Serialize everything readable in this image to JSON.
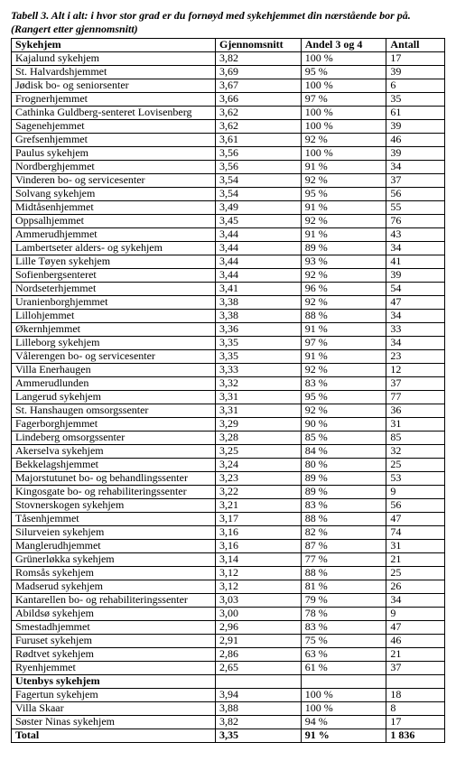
{
  "title_line1": "Tabell 3. Alt i alt: i hvor stor grad er du fornøyd med sykehjemmet din nærstående bor på.",
  "title_line2": "(Rangert etter gjennomsnitt)",
  "headers": {
    "name": "Sykehjem",
    "avg": "Gjennomsnitt",
    "share": "Andel 3 og 4",
    "count": "Antall"
  },
  "section_label": "Utenbys sykehjem",
  "total_label": "Total",
  "total": {
    "avg": "3,35",
    "share": "91 %",
    "count": "1 836"
  },
  "rows": [
    {
      "name": "Kajalund sykehjem",
      "avg": "3,82",
      "share": "100 %",
      "count": "17"
    },
    {
      "name": "St. Halvardshjemmet",
      "avg": "3,69",
      "share": "95 %",
      "count": "39"
    },
    {
      "name": "Jødisk bo- og seniorsenter",
      "avg": "3,67",
      "share": "100 %",
      "count": "6"
    },
    {
      "name": "Frognerhjemmet",
      "avg": "3,66",
      "share": "97 %",
      "count": "35"
    },
    {
      "name": "Cathinka Guldberg-senteret Lovisenberg",
      "avg": "3,62",
      "share": "100 %",
      "count": "61"
    },
    {
      "name": "Sagenehjemmet",
      "avg": "3,62",
      "share": "100 %",
      "count": "39"
    },
    {
      "name": "Grefsenhjemmet",
      "avg": "3,61",
      "share": "92 %",
      "count": "46"
    },
    {
      "name": "Paulus sykehjem",
      "avg": "3,56",
      "share": "100 %",
      "count": "39"
    },
    {
      "name": "Nordberghjemmet",
      "avg": "3,56",
      "share": "91 %",
      "count": "34"
    },
    {
      "name": "Vinderen bo- og servicesenter",
      "avg": "3,54",
      "share": "92 %",
      "count": "37"
    },
    {
      "name": "Solvang sykehjem",
      "avg": "3,54",
      "share": "95 %",
      "count": "56"
    },
    {
      "name": "Midtåsenhjemmet",
      "avg": "3,49",
      "share": "91 %",
      "count": "55"
    },
    {
      "name": "Oppsalhjemmet",
      "avg": "3,45",
      "share": "92 %",
      "count": "76"
    },
    {
      "name": "Ammerudhjemmet",
      "avg": "3,44",
      "share": "91 %",
      "count": "43"
    },
    {
      "name": "Lambertseter alders- og sykehjem",
      "avg": "3,44",
      "share": "89 %",
      "count": "34"
    },
    {
      "name": "Lille Tøyen sykehjem",
      "avg": "3,44",
      "share": "93 %",
      "count": "41"
    },
    {
      "name": "Sofienbergsenteret",
      "avg": "3,44",
      "share": "92 %",
      "count": "39"
    },
    {
      "name": "Nordseterhjemmet",
      "avg": "3,41",
      "share": "96 %",
      "count": "54"
    },
    {
      "name": "Uranienborghjemmet",
      "avg": "3,38",
      "share": "92 %",
      "count": "47"
    },
    {
      "name": "Lillohjemmet",
      "avg": "3,38",
      "share": "88 %",
      "count": "34"
    },
    {
      "name": "Økernhjemmet",
      "avg": "3,36",
      "share": "91 %",
      "count": "33"
    },
    {
      "name": "Lilleborg sykehjem",
      "avg": "3,35",
      "share": "97 %",
      "count": "34"
    },
    {
      "name": "Vålerengen bo- og servicesenter",
      "avg": "3,35",
      "share": "91 %",
      "count": "23"
    },
    {
      "name": "Villa Enerhaugen",
      "avg": "3,33",
      "share": "92 %",
      "count": "12"
    },
    {
      "name": "Ammerudlunden",
      "avg": "3,32",
      "share": "83 %",
      "count": "37"
    },
    {
      "name": "Langerud sykehjem",
      "avg": "3,31",
      "share": "95 %",
      "count": "77"
    },
    {
      "name": "St. Hanshaugen omsorgssenter",
      "avg": "3,31",
      "share": "92 %",
      "count": "36"
    },
    {
      "name": "Fagerborghjemmet",
      "avg": "3,29",
      "share": "90 %",
      "count": "31"
    },
    {
      "name": "Lindeberg omsorgssenter",
      "avg": "3,28",
      "share": "85 %",
      "count": "85"
    },
    {
      "name": "Akerselva sykehjem",
      "avg": "3,25",
      "share": "84 %",
      "count": "32"
    },
    {
      "name": "Bekkelagshjemmet",
      "avg": "3,24",
      "share": "80 %",
      "count": "25"
    },
    {
      "name": "Majorstutunet bo- og behandlingssenter",
      "avg": "3,23",
      "share": "89 %",
      "count": "53"
    },
    {
      "name": "Kingosgate bo- og rehabiliteringssenter",
      "avg": "3,22",
      "share": "89 %",
      "count": "9"
    },
    {
      "name": "Stovnerskogen sykehjem",
      "avg": "3,21",
      "share": "83 %",
      "count": "56"
    },
    {
      "name": "Tåsenhjemmet",
      "avg": "3,17",
      "share": "88 %",
      "count": "47"
    },
    {
      "name": "Silurveien sykehjem",
      "avg": "3,16",
      "share": "82 %",
      "count": "74"
    },
    {
      "name": "Manglerudhjemmet",
      "avg": "3,16",
      "share": "87 %",
      "count": "31"
    },
    {
      "name": "Grünerløkka sykehjem",
      "avg": "3,14",
      "share": "77 %",
      "count": "21"
    },
    {
      "name": "Romsås sykehjem",
      "avg": "3,12",
      "share": "88 %",
      "count": "25"
    },
    {
      "name": "Madserud sykehjem",
      "avg": "3,12",
      "share": "81 %",
      "count": "26"
    },
    {
      "name": "Kantarellen bo- og rehabiliteringssenter",
      "avg": "3,03",
      "share": "79 %",
      "count": "34"
    },
    {
      "name": "Abildsø sykehjem",
      "avg": "3,00",
      "share": "78 %",
      "count": "9"
    },
    {
      "name": "Smestadhjemmet",
      "avg": "2,96",
      "share": "83 %",
      "count": "47"
    },
    {
      "name": "Furuset sykehjem",
      "avg": "2,91",
      "share": "75 %",
      "count": "46"
    },
    {
      "name": "Rødtvet sykehjem",
      "avg": "2,86",
      "share": "63 %",
      "count": "21"
    },
    {
      "name": "Ryenhjemmet",
      "avg": "2,65",
      "share": "61 %",
      "count": "37"
    }
  ],
  "outside": [
    {
      "name": "Fagertun sykehjem",
      "avg": "3,94",
      "share": "100 %",
      "count": "18"
    },
    {
      "name": "Villa Skaar",
      "avg": "3,88",
      "share": "100 %",
      "count": "8"
    },
    {
      "name": "Søster Ninas sykehjem",
      "avg": "3,82",
      "share": "94 %",
      "count": "17"
    }
  ]
}
